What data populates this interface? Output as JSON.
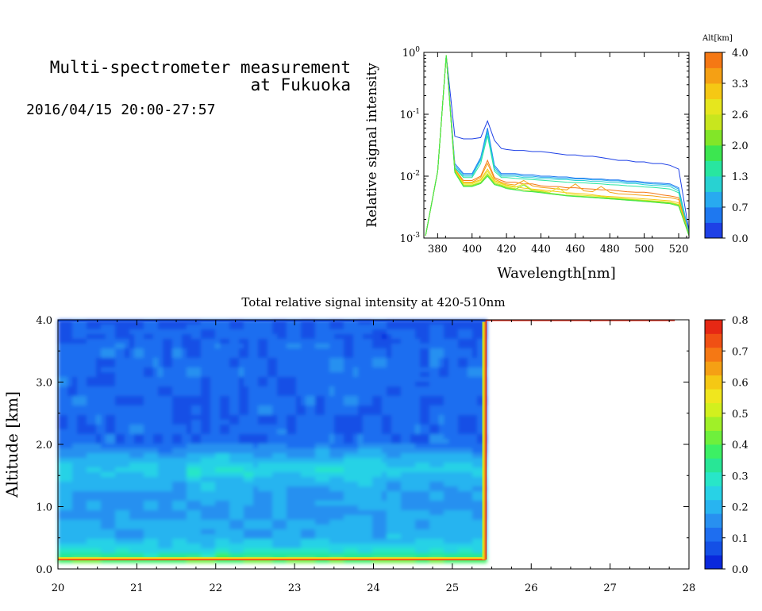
{
  "header": {
    "title_line1": "Multi-spectrometer measurement",
    "title_line2": "at Fukuoka",
    "date_range": "2016/04/15 20:00-27:57"
  },
  "chart_data": [
    {
      "type": "line",
      "xlabel": "Wavelength[nm]",
      "ylabel": "Relative signal intensity",
      "xlim": [
        372,
        526
      ],
      "ylim": [
        0.001,
        1
      ],
      "log_y": true,
      "x_ticks": [
        380,
        400,
        420,
        440,
        460,
        480,
        500,
        520
      ],
      "y_ticks": [
        {
          "value": 0.001,
          "mant": "10",
          "exp": "-3"
        },
        {
          "value": 0.01,
          "mant": "10",
          "exp": "-2"
        },
        {
          "value": 0.1,
          "mant": "10",
          "exp": "-1"
        },
        {
          "value": 1,
          "mant": "10",
          "exp": "0"
        }
      ],
      "colorbar": {
        "title": "Alt[km]",
        "tick_labels": [
          "0.0",
          "0.7",
          "1.3",
          "2.0",
          "2.6",
          "3.3",
          "4.0"
        ],
        "colors": [
          "#1e40e6",
          "#1e78f0",
          "#28aaf0",
          "#28d2d2",
          "#28e6a0",
          "#3ce650",
          "#82e628",
          "#c8e61e",
          "#e6e61e",
          "#f5c814",
          "#f5a014",
          "#f57814"
        ]
      },
      "x": [
        373,
        380,
        385,
        390,
        395,
        400,
        405,
        409,
        413,
        417,
        420,
        425,
        430,
        435,
        440,
        445,
        450,
        455,
        460,
        465,
        470,
        475,
        480,
        485,
        490,
        495,
        500,
        505,
        510,
        515,
        520,
        526
      ],
      "series": [
        {
          "color": "#1e40e6",
          "values": [
            0.0011,
            0.012,
            0.9,
            0.044,
            0.04,
            0.04,
            0.042,
            0.078,
            0.038,
            0.028,
            0.027,
            0.026,
            0.026,
            0.025,
            0.025,
            0.024,
            0.023,
            0.022,
            0.022,
            0.021,
            0.021,
            0.02,
            0.019,
            0.018,
            0.018,
            0.017,
            0.017,
            0.016,
            0.016,
            0.015,
            0.013,
            0.0013
          ]
        },
        {
          "color": "#1e78f0",
          "values": [
            0.0011,
            0.012,
            0.9,
            0.016,
            0.011,
            0.011,
            0.02,
            0.06,
            0.015,
            0.011,
            0.011,
            0.011,
            0.0105,
            0.0105,
            0.01,
            0.01,
            0.0097,
            0.0097,
            0.0093,
            0.0093,
            0.009,
            0.009,
            0.0087,
            0.0087,
            0.0083,
            0.0083,
            0.008,
            0.0078,
            0.0077,
            0.0075,
            0.0065,
            0.0012
          ]
        },
        {
          "color": "#28aaf0",
          "values": [
            0.0011,
            0.012,
            0.9,
            0.015,
            0.0105,
            0.0105,
            0.019,
            0.055,
            0.014,
            0.0105,
            0.0105,
            0.0105,
            0.01,
            0.01,
            0.0096,
            0.0096,
            0.0093,
            0.0093,
            0.009,
            0.009,
            0.0087,
            0.0087,
            0.0084,
            0.0084,
            0.008,
            0.008,
            0.0077,
            0.0075,
            0.0074,
            0.0072,
            0.0062,
            0.0012
          ]
        },
        {
          "color": "#28d2d2",
          "values": [
            0.0011,
            0.012,
            0.9,
            0.014,
            0.01,
            0.01,
            0.018,
            0.05,
            0.013,
            0.01,
            0.01,
            0.01,
            0.0095,
            0.0095,
            0.0091,
            0.0091,
            0.0088,
            0.0088,
            0.0085,
            0.0085,
            0.0082,
            0.0082,
            0.0079,
            0.0079,
            0.0076,
            0.0076,
            0.0073,
            0.0071,
            0.007,
            0.0068,
            0.0058,
            0.0012
          ]
        },
        {
          "color": "#28e6a0",
          "values": [
            0.0011,
            0.012,
            0.9,
            0.0135,
            0.0095,
            0.0095,
            0.016,
            0.045,
            0.012,
            0.0095,
            0.0095,
            0.0092,
            0.009,
            0.0088,
            0.0086,
            0.0084,
            0.0082,
            0.008,
            0.0079,
            0.0078,
            0.0076,
            0.0075,
            0.0073,
            0.0072,
            0.007,
            0.0069,
            0.0067,
            0.0066,
            0.0064,
            0.0062,
            0.0054,
            0.0011
          ]
        },
        {
          "color": "#f57814",
          "values": [
            0.0011,
            0.012,
            0.9,
            0.013,
            0.0085,
            0.0085,
            0.01,
            0.018,
            0.0095,
            0.0085,
            0.008,
            0.008,
            0.0075,
            0.0075,
            0.007,
            0.0068,
            0.0068,
            0.0065,
            0.0065,
            0.0063,
            0.0062,
            0.006,
            0.006,
            0.0058,
            0.0056,
            0.0055,
            0.0055,
            0.0053,
            0.005,
            0.0048,
            0.0045,
            0.0011
          ]
        },
        {
          "color": "#f5a014",
          "values": [
            0.0011,
            0.012,
            0.9,
            0.013,
            0.008,
            0.008,
            0.0095,
            0.016,
            0.009,
            0.008,
            0.0075,
            0.0072,
            0.0085,
            0.007,
            0.0066,
            0.0064,
            0.0062,
            0.006,
            0.0075,
            0.0058,
            0.0056,
            0.0068,
            0.0055,
            0.0052,
            0.0051,
            0.005,
            0.0049,
            0.0048,
            0.0046,
            0.0045,
            0.0042,
            0.0011
          ]
        },
        {
          "color": "#f5c814",
          "values": [
            0.0011,
            0.012,
            0.9,
            0.0125,
            0.0078,
            0.0078,
            0.0088,
            0.013,
            0.0085,
            0.0077,
            0.0072,
            0.0068,
            0.0064,
            0.0062,
            0.006,
            0.0058,
            0.0056,
            0.0054,
            0.0053,
            0.0052,
            0.005,
            0.0048,
            0.0047,
            0.0046,
            0.0045,
            0.0044,
            0.0043,
            0.0042,
            0.0041,
            0.004,
            0.0037,
            0.0011
          ]
        },
        {
          "color": "#e6e61e",
          "values": [
            0.0011,
            0.012,
            0.9,
            0.012,
            0.0075,
            0.0075,
            0.0085,
            0.012,
            0.0082,
            0.0075,
            0.007,
            0.0066,
            0.0075,
            0.006,
            0.0058,
            0.0055,
            0.0065,
            0.0052,
            0.005,
            0.0049,
            0.0048,
            0.0047,
            0.0045,
            0.0044,
            0.0043,
            0.0042,
            0.0041,
            0.004,
            0.0039,
            0.0038,
            0.0035,
            0.0011
          ]
        },
        {
          "color": "#c8e61e",
          "values": [
            0.0011,
            0.012,
            0.9,
            0.012,
            0.0072,
            0.0072,
            0.008,
            0.011,
            0.0078,
            0.0072,
            0.0067,
            0.0063,
            0.006,
            0.0057,
            0.0055,
            0.0052,
            0.005,
            0.0049,
            0.0047,
            0.0046,
            0.0045,
            0.0044,
            0.0043,
            0.0042,
            0.0041,
            0.004,
            0.0039,
            0.0038,
            0.0037,
            0.0036,
            0.0033,
            0.0011
          ]
        },
        {
          "color": "#82e628",
          "values": [
            0.0011,
            0.012,
            0.9,
            0.0118,
            0.007,
            0.007,
            0.0078,
            0.0105,
            0.0075,
            0.007,
            0.0065,
            0.0061,
            0.0072,
            0.0058,
            0.0056,
            0.0053,
            0.0051,
            0.0049,
            0.0048,
            0.0047,
            0.0046,
            0.0045,
            0.0044,
            0.0043,
            0.0042,
            0.0041,
            0.004,
            0.0039,
            0.0038,
            0.0037,
            0.0034,
            0.0011
          ]
        },
        {
          "color": "#3ce650",
          "values": [
            0.0011,
            0.012,
            0.9,
            0.0115,
            0.0068,
            0.0068,
            0.0076,
            0.01,
            0.0073,
            0.0068,
            0.0063,
            0.006,
            0.0057,
            0.0056,
            0.0054,
            0.0052,
            0.005,
            0.0048,
            0.0047,
            0.0046,
            0.0045,
            0.0044,
            0.0043,
            0.0042,
            0.0041,
            0.004,
            0.0039,
            0.0038,
            0.0037,
            0.0036,
            0.0033,
            0.0011
          ]
        }
      ]
    },
    {
      "type": "heatmap",
      "title": "Total relative signal intensity at 420-510nm",
      "ylabel": "Altitude [km]",
      "xlim": [
        20,
        28
      ],
      "ylim": [
        0,
        4
      ],
      "x_ticks": [
        "20",
        "21",
        "22",
        "23",
        "24",
        "25",
        "26",
        "27",
        "28"
      ],
      "y_ticks": [
        "0.0",
        "1.0",
        "2.0",
        "3.0",
        "4.0"
      ],
      "data_end_x": 25.42,
      "bottom_altitude": 0.15,
      "colorbar": {
        "tick_labels": [
          "0.0",
          "0.1",
          "0.2",
          "0.3",
          "0.4",
          "0.5",
          "0.6",
          "0.7",
          "0.8"
        ],
        "colors": [
          "#0a28dc",
          "#1450e6",
          "#1e6ef0",
          "#2890f0",
          "#28b4f0",
          "#28d2e6",
          "#28e6c8",
          "#28e696",
          "#3cf064",
          "#6ef03c",
          "#a0f028",
          "#d2f01e",
          "#f0e61e",
          "#f5c814",
          "#f5a014",
          "#f57814",
          "#f05014",
          "#e62814"
        ]
      },
      "profile_altitudes": [
        0.15,
        0.25,
        0.35,
        0.5,
        0.75,
        1.0,
        1.25,
        1.45,
        1.6,
        1.75,
        2.0,
        2.5,
        3.0,
        3.5,
        4.0
      ],
      "profile_values": [
        0.4,
        0.3,
        0.24,
        0.2,
        0.19,
        0.16,
        0.17,
        0.2,
        0.24,
        0.2,
        0.12,
        0.11,
        0.11,
        0.12,
        0.08
      ]
    }
  ]
}
